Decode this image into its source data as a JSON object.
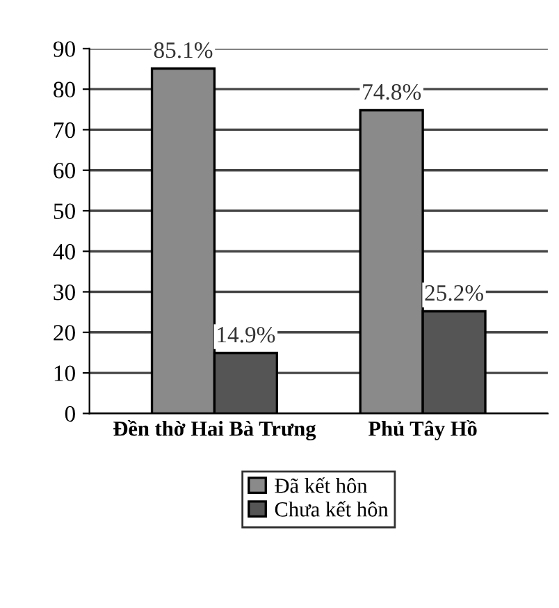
{
  "chart_data": {
    "type": "bar",
    "categories": [
      "Đền thờ Hai Bà Trưng",
      "Phủ Tây Hồ"
    ],
    "series": [
      {
        "name": "Đã kết hôn",
        "color": "#8a8a8a",
        "values": [
          85.1,
          74.8
        ],
        "value_labels": [
          "85.1%",
          "74.8%"
        ]
      },
      {
        "name": "Chưa kết hôn",
        "color": "#555555",
        "values": [
          14.9,
          25.2
        ],
        "value_labels": [
          "14.9%",
          "25.2%"
        ]
      }
    ],
    "ylim": [
      0,
      90
    ],
    "yticks": [
      0,
      10,
      20,
      30,
      40,
      50,
      60,
      70,
      80,
      90
    ],
    "grid": "y",
    "legend": "bottom"
  }
}
